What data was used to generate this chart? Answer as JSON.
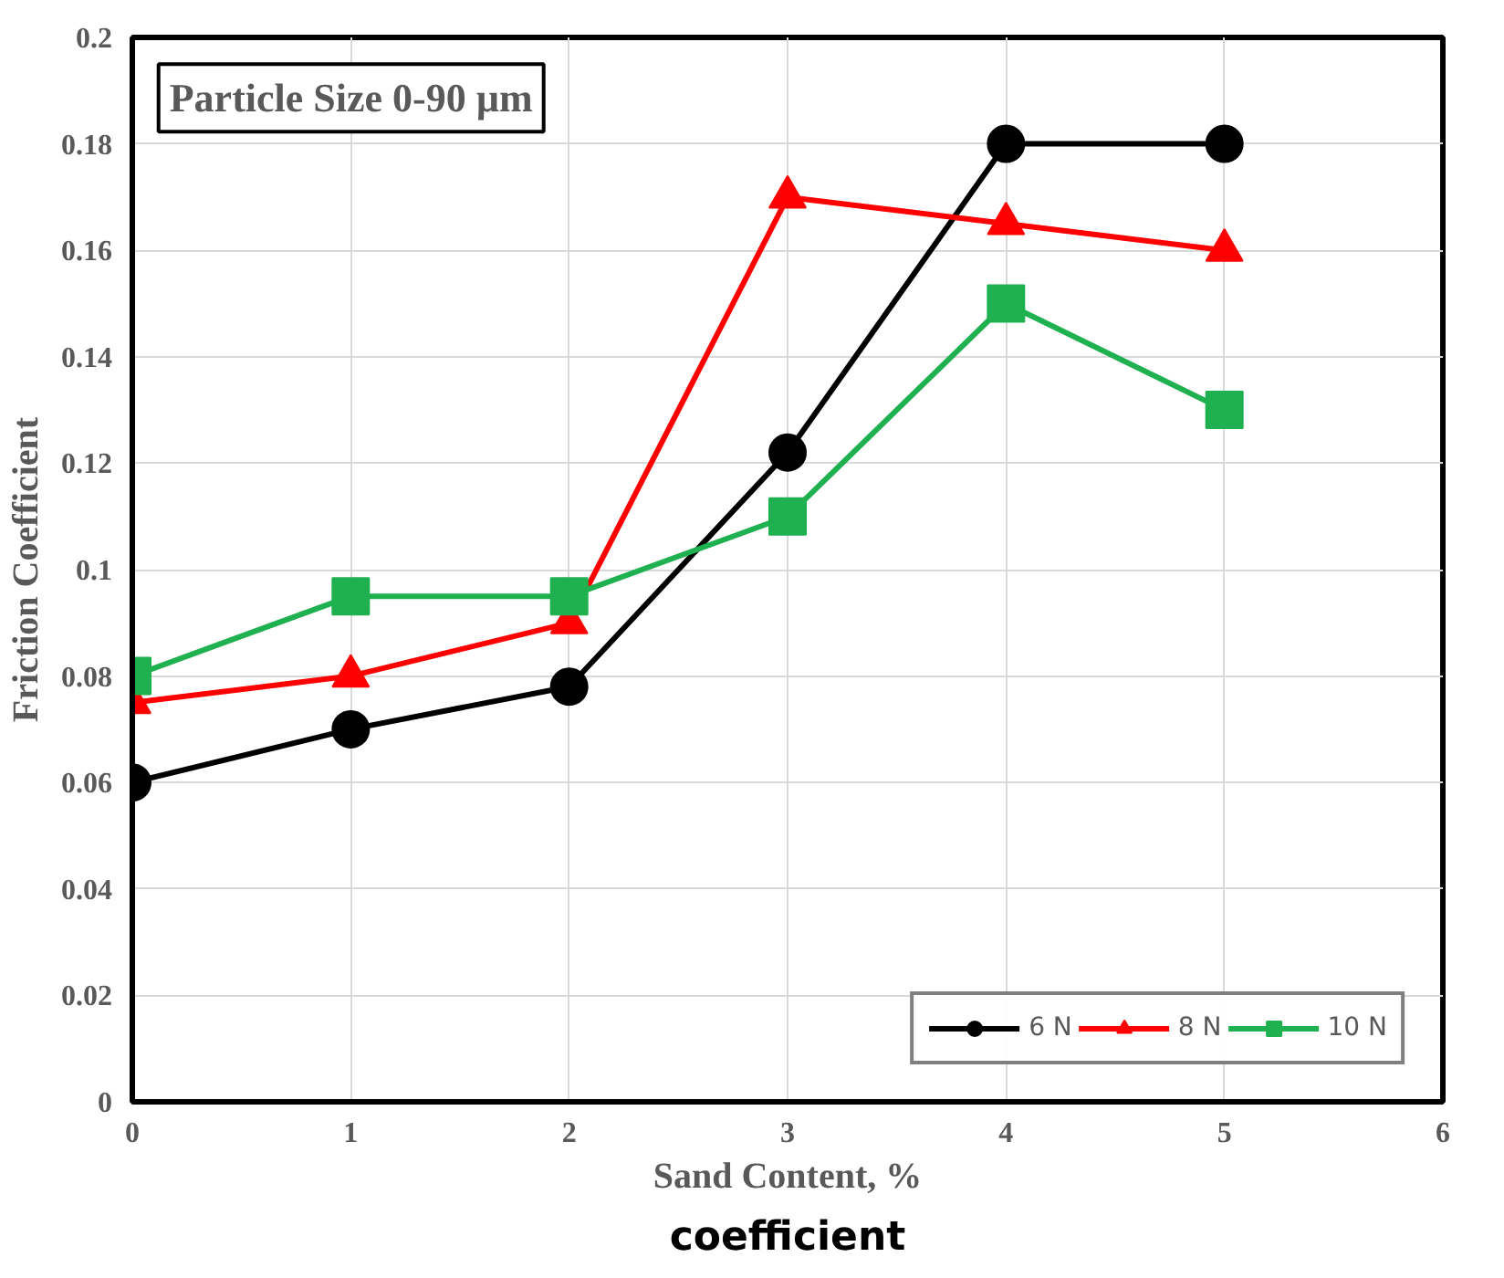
{
  "chart_data": {
    "type": "line",
    "xlabel": "Sand Content, %",
    "ylabel": "Friction Coefficient",
    "annotations": [
      "Particle Size 0-90 µm",
      "coefficient"
    ],
    "x": [
      0,
      1,
      2,
      3,
      4,
      5
    ],
    "series": [
      {
        "name": "6 N",
        "color": "#000000",
        "marker": "circle",
        "values": [
          0.06,
          0.07,
          0.078,
          0.122,
          0.18,
          0.18
        ]
      },
      {
        "name": "8 N",
        "color": "#ff0000",
        "marker": "triangle",
        "values": [
          0.075,
          0.08,
          0.09,
          0.17,
          0.165,
          0.16
        ]
      },
      {
        "name": "10 N",
        "color": "#1fb04f",
        "marker": "square",
        "values": [
          0.08,
          0.095,
          0.095,
          0.11,
          0.15,
          0.13
        ]
      }
    ],
    "xlim": [
      0,
      6
    ],
    "xticks": [
      0,
      1,
      2,
      3,
      4,
      5,
      6
    ],
    "ylim": [
      0,
      0.2
    ],
    "yticks": [
      0,
      0.02,
      0.04,
      0.06,
      0.08,
      {
        "value": 0.1,
        "label": "0.1"
      },
      0.12,
      0.14,
      0.16,
      0.18,
      {
        "value": 0.2,
        "label": "0.2"
      }
    ],
    "grid": true,
    "legend": "bottom right",
    "line_style": "solid"
  }
}
